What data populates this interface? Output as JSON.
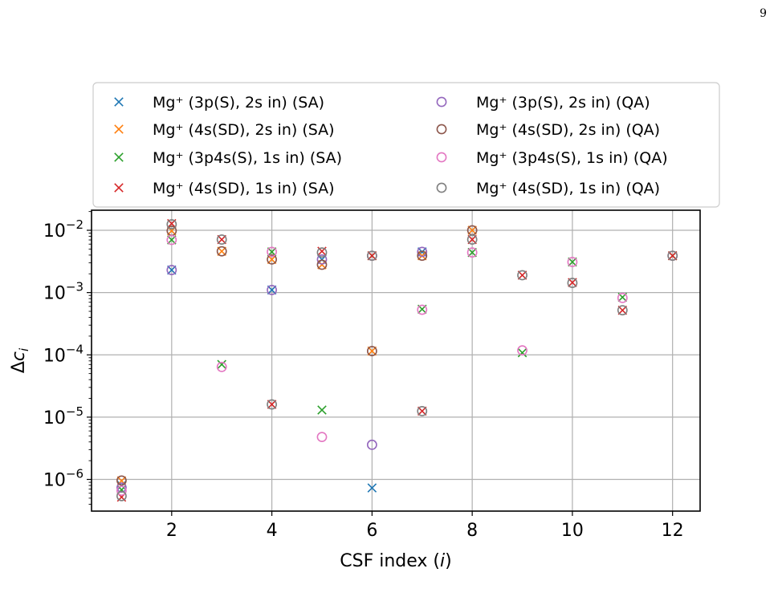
{
  "page_number": "9",
  "colors": {
    "blue": "#1f77b4",
    "orange": "#ff7f0e",
    "green": "#2ca02c",
    "red": "#d62728",
    "purple": "#9467bd",
    "brown": "#8c564b",
    "pink": "#e377c2",
    "gray": "#7f7f7f",
    "grid": "#b0b0b0"
  },
  "chart_data": {
    "type": "scatter",
    "title": "",
    "xlabel": "CSF index (i)",
    "ylabel": "Δc_i",
    "yscale": "log",
    "xlim": [
      0.4,
      12.55
    ],
    "ylim": [
      3.1e-07,
      0.021
    ],
    "xticks": [
      2,
      4,
      6,
      8,
      10,
      12
    ],
    "yticks": [
      {
        "value": 1e-06,
        "mantissa": "10",
        "exp": "−6"
      },
      {
        "value": 1e-05,
        "mantissa": "10",
        "exp": "−5"
      },
      {
        "value": 0.0001,
        "mantissa": "10",
        "exp": "−4"
      },
      {
        "value": 0.001,
        "mantissa": "10",
        "exp": "−3"
      },
      {
        "value": 0.01,
        "mantissa": "10",
        "exp": "−2"
      }
    ],
    "grid": true,
    "legend_position": "upper center above plot",
    "series": [
      {
        "label": "Mg⁺ (3p(S), 2s in) (SA)",
        "marker": "x",
        "color": "blue",
        "points": [
          [
            1,
            8e-07
          ],
          [
            2,
            0.0023
          ],
          [
            4,
            0.0011
          ],
          [
            5,
            0.0034
          ],
          [
            6,
            7.3e-07
          ],
          [
            7,
            0.0045
          ]
        ]
      },
      {
        "label": "Mg⁺ (4s(SD), 2s in) (SA)",
        "marker": "x",
        "color": "orange",
        "points": [
          [
            1,
            9.5e-07
          ],
          [
            2,
            0.0098
          ],
          [
            3,
            0.0046
          ],
          [
            4,
            0.0034
          ],
          [
            5,
            0.0028
          ],
          [
            6,
            0.000115
          ],
          [
            7,
            0.0039
          ],
          [
            8,
            0.01
          ]
        ]
      },
      {
        "label": "Mg⁺ (3p4s(S), 1s in) (SA)",
        "marker": "x",
        "color": "green",
        "points": [
          [
            1,
            6.8e-07
          ],
          [
            2,
            0.007
          ],
          [
            3,
            7e-05
          ],
          [
            4,
            0.0045
          ],
          [
            5,
            1.3e-05
          ],
          [
            6,
            0.0039
          ],
          [
            7,
            0.00054
          ],
          [
            8,
            0.0044
          ],
          [
            9,
            0.000108
          ],
          [
            10,
            0.0031
          ],
          [
            11,
            0.00084
          ],
          [
            12,
            0.0039
          ]
        ]
      },
      {
        "label": "Mg⁺ (4s(SD), 1s in) (SA)",
        "marker": "x",
        "color": "red",
        "points": [
          [
            1,
            5.2e-07
          ],
          [
            2,
            0.0128
          ],
          [
            3,
            0.0071
          ],
          [
            4,
            1.6e-05
          ],
          [
            5,
            0.0046
          ],
          [
            6,
            0.0039
          ],
          [
            7,
            1.25e-05
          ],
          [
            8,
            0.0071
          ],
          [
            9,
            0.0019
          ],
          [
            10,
            0.00145
          ],
          [
            11,
            0.00052
          ],
          [
            12,
            0.0039
          ]
        ]
      },
      {
        "label": "Mg⁺ (3p(S), 2s in) (QA)",
        "marker": "o",
        "color": "purple",
        "points": [
          [
            1,
            7.4e-07
          ],
          [
            2,
            0.0023
          ],
          [
            4,
            0.0011
          ],
          [
            5,
            0.0034
          ],
          [
            6,
            3.6e-06
          ],
          [
            7,
            0.0045
          ]
        ]
      },
      {
        "label": "Mg⁺ (4s(SD), 2s in) (QA)",
        "marker": "o",
        "color": "brown",
        "points": [
          [
            1,
            9.6e-07
          ],
          [
            2,
            0.0098
          ],
          [
            3,
            0.0046
          ],
          [
            4,
            0.0034
          ],
          [
            5,
            0.0028
          ],
          [
            6,
            0.000115
          ],
          [
            7,
            0.0039
          ],
          [
            8,
            0.01
          ]
        ]
      },
      {
        "label": "Mg⁺ (3p4s(S), 1s in) (QA)",
        "marker": "o",
        "color": "pink",
        "points": [
          [
            1,
            6.6e-07
          ],
          [
            2,
            0.007
          ],
          [
            3,
            6.4e-05
          ],
          [
            4,
            0.0045
          ],
          [
            5,
            4.8e-06
          ],
          [
            6,
            0.0039
          ],
          [
            7,
            0.00053
          ],
          [
            8,
            0.0044
          ],
          [
            9,
            0.000118
          ],
          [
            10,
            0.0031
          ],
          [
            11,
            0.00082
          ],
          [
            12,
            0.0039
          ]
        ]
      },
      {
        "label": "Mg⁺ (4s(SD), 1s in) (QA)",
        "marker": "o",
        "color": "gray",
        "points": [
          [
            1,
            5.4e-07
          ],
          [
            2,
            0.0125
          ],
          [
            3,
            0.0071
          ],
          [
            4,
            1.6e-05
          ],
          [
            5,
            0.0044
          ],
          [
            6,
            0.0039
          ],
          [
            7,
            1.25e-05
          ],
          [
            8,
            0.0071
          ],
          [
            9,
            0.0019
          ],
          [
            10,
            0.00143
          ],
          [
            11,
            0.00052
          ],
          [
            12,
            0.0039
          ]
        ]
      }
    ]
  }
}
